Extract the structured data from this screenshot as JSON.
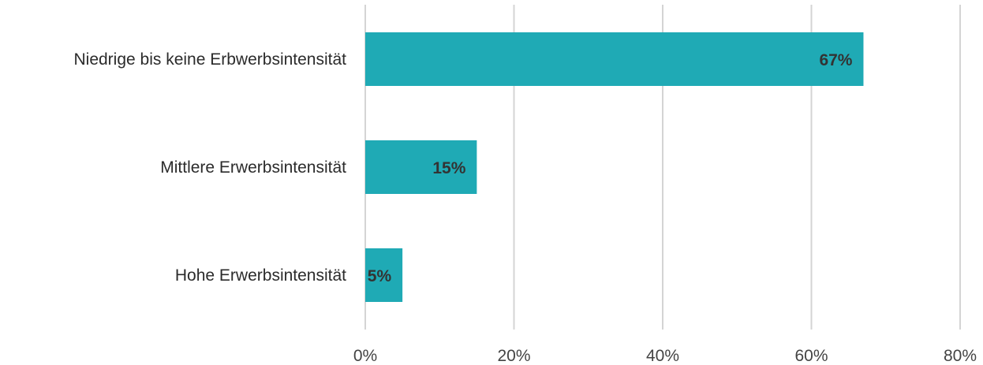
{
  "chart_data": {
    "type": "bar",
    "orientation": "horizontal",
    "categories": [
      "Niedrige bis keine Erbwerbsintensität",
      "Mittlere Erwerbsintensität",
      "Hohe Erwerbsintensität"
    ],
    "values": [
      67,
      15,
      5
    ],
    "data_labels": [
      "67%",
      "15%",
      "5%"
    ],
    "xlim": [
      0,
      80
    ],
    "ticks": [
      0,
      20,
      40,
      60,
      80
    ],
    "tick_labels": [
      "0%",
      "20%",
      "40%",
      "60%",
      "80%"
    ],
    "grid": true,
    "legend": "none",
    "bar_color": "#1faab5",
    "title": "",
    "xlabel": "",
    "ylabel": ""
  }
}
